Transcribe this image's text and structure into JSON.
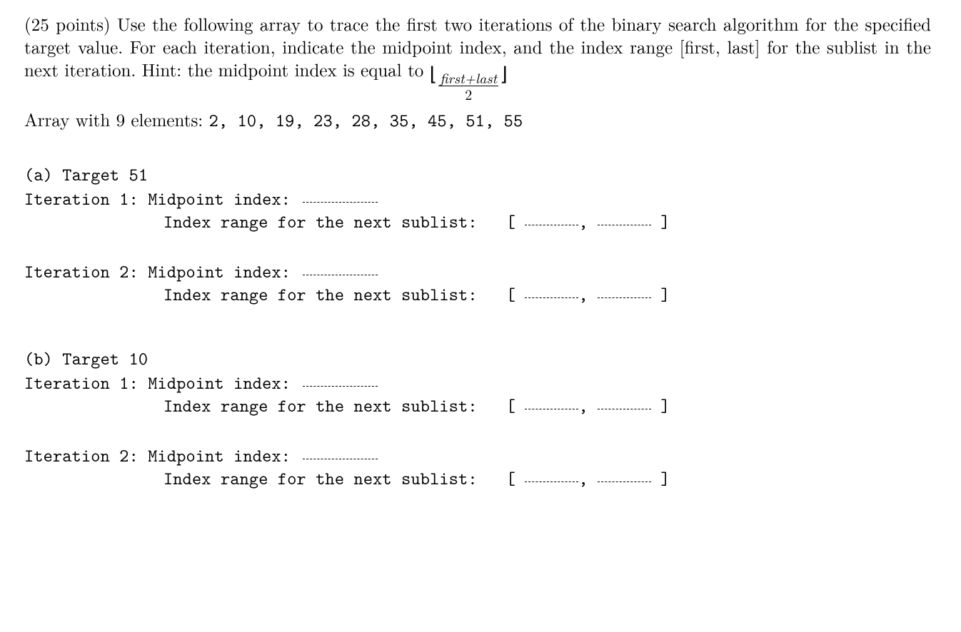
{
  "intro": {
    "points": "(25 points)",
    "sentence1_rest": " Use the following array to trace the first two iterations of the binary search algorithm for the specified target value.  For each iteration, indicate the midpoint index, and the index range [first, last] for the sublist in the next iteration.  Hint: the midpoint index is equal to ",
    "floor_open": "⌊",
    "frac_num": "first+last",
    "frac_den": "2",
    "floor_close": "⌋"
  },
  "array_line": {
    "prefix": "Array with 9 elements: ",
    "values": "2, 10, 19, 23, 28, 35, 45, 51, 55"
  },
  "labels": {
    "midpoint": "Midpoint index:",
    "range": "Index range for the next sublist:",
    "bracket_open": "[",
    "comma": ",",
    "bracket_close": "]"
  },
  "parts": {
    "a": {
      "heading": "(a) Target 51",
      "iter1_label": "Iteration 1:",
      "iter2_label": "Iteration 2:"
    },
    "b": {
      "heading": "(b) Target 10",
      "iter1_label": "Iteration 1:",
      "iter2_label": "Iteration 2:"
    }
  }
}
